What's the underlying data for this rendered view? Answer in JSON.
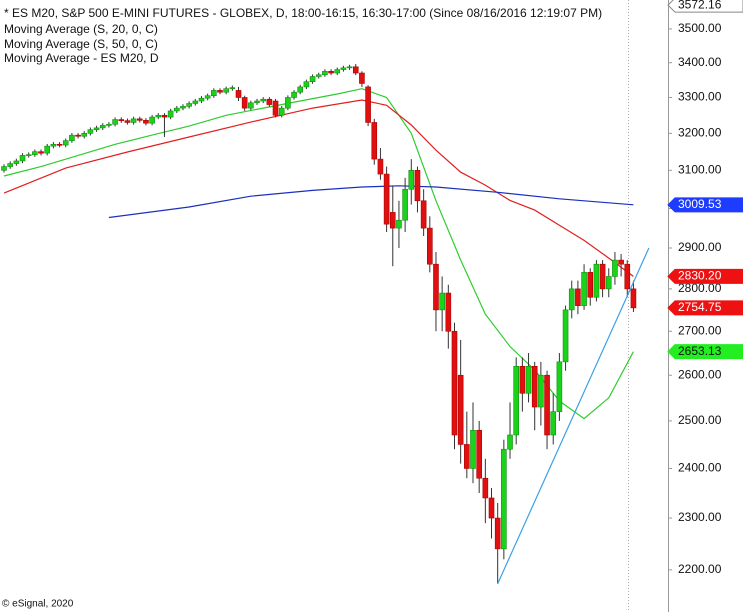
{
  "chart_data": {
    "type": "candlestick",
    "title": "* ES M20, S&P 500 E-MINI FUTURES - GLOBEX, D, 18:00-16:15, 16:30-17:00 (Since 08/16/2016 12:19:07 PM)",
    "log_scale": true,
    "xlim": [
      -0.65,
      107.6
    ],
    "ylim": [
      2153,
      3588
    ],
    "yticks": [
      {
        "value": 2200,
        "label": "2200.00"
      },
      {
        "value": 2300,
        "label": "2300.00"
      },
      {
        "value": 2400,
        "label": "2400.00"
      },
      {
        "value": 2500,
        "label": "2500.00"
      },
      {
        "value": 2600,
        "label": "2600.00"
      },
      {
        "value": 2700,
        "label": "2700.00"
      },
      {
        "value": 2800,
        "label": "2800.00"
      },
      {
        "value": 2900,
        "label": "2900.00"
      },
      {
        "value": 3000,
        "label": "3000.00"
      },
      {
        "value": 3100,
        "label": "3100.00"
      },
      {
        "value": 3200,
        "label": "3200.00"
      },
      {
        "value": 3300,
        "label": "3300.00"
      },
      {
        "value": 3400,
        "label": "3400.00"
      },
      {
        "value": 3500,
        "label": "3500.00"
      }
    ],
    "up_color": "#19d219",
    "down_color": "#e01010",
    "open": [
      3100,
      3110,
      3118,
      3125,
      3140,
      3142,
      3150,
      3146,
      3165,
      3170,
      3168,
      3180,
      3195,
      3192,
      3200,
      3210,
      3215,
      3222,
      3225,
      3238,
      3235,
      3230,
      3240,
      3236,
      3228,
      3245,
      3250,
      3245,
      3262,
      3270,
      3275,
      3283,
      3290,
      3298,
      3305,
      3320,
      3315,
      3325,
      3320,
      3300,
      3270,
      3285,
      3290,
      3295,
      3290,
      3250,
      3270,
      3300,
      3315,
      3330,
      3345,
      3360,
      3365,
      3375,
      3370,
      3380,
      3385,
      3388,
      3370,
      3330,
      3230,
      3130,
      3090,
      2990,
      2950,
      2970,
      3050,
      3100,
      3020,
      2950,
      2860,
      2750,
      2790,
      2700,
      2600,
      2450,
      2400,
      2480,
      2380,
      2340,
      2300,
      2240,
      2440,
      2470,
      2620,
      2560,
      2620,
      2530,
      2600,
      2470,
      2520,
      2630,
      2750,
      2800,
      2760,
      2840,
      2780,
      2860,
      2800,
      2830,
      2870,
      2860,
      2800
    ],
    "high": [
      3116,
      3124,
      3131,
      3146,
      3148,
      3156,
      3156,
      3171,
      3176,
      3176,
      3186,
      3201,
      3201,
      3206,
      3216,
      3221,
      3228,
      3231,
      3244,
      3244,
      3241,
      3246,
      3246,
      3242,
      3251,
      3256,
      3256,
      3268,
      3276,
      3281,
      3289,
      3296,
      3304,
      3311,
      3326,
      3326,
      3331,
      3334,
      3330,
      3305,
      3291,
      3296,
      3301,
      3301,
      3296,
      3276,
      3306,
      3321,
      3336,
      3351,
      3366,
      3371,
      3381,
      3381,
      3386,
      3391,
      3394,
      3396,
      3375,
      3335,
      3240,
      3160,
      3110,
      3060,
      3020,
      3080,
      3130,
      3110,
      3050,
      2980,
      2890,
      2830,
      2810,
      2720,
      2680,
      2520,
      2540,
      2500,
      2420,
      2360,
      2330,
      2460,
      2540,
      2640,
      2640,
      2650,
      2630,
      2630,
      2610,
      2560,
      2650,
      2760,
      2820,
      2820,
      2860,
      2850,
      2870,
      2870,
      2850,
      2890,
      2885,
      2870,
      2820
    ],
    "low": [
      3094,
      3104,
      3112,
      3119,
      3134,
      3136,
      3140,
      3140,
      3159,
      3162,
      3162,
      3174,
      3186,
      3186,
      3194,
      3204,
      3209,
      3216,
      3219,
      3229,
      3224,
      3224,
      3230,
      3222,
      3222,
      3239,
      3190,
      3239,
      3256,
      3264,
      3269,
      3277,
      3284,
      3292,
      3299,
      3309,
      3309,
      3319,
      3290,
      3262,
      3264,
      3279,
      3284,
      3274,
      3244,
      3244,
      3264,
      3294,
      3309,
      3324,
      3339,
      3354,
      3359,
      3364,
      3364,
      3374,
      3379,
      3364,
      3330,
      3220,
      3115,
      3075,
      2940,
      2855,
      2900,
      2940,
      3010,
      2990,
      2930,
      2840,
      2700,
      2700,
      2660,
      2440,
      2410,
      2380,
      2370,
      2350,
      2290,
      2260,
      2174,
      2220,
      2420,
      2450,
      2520,
      2540,
      2480,
      2490,
      2440,
      2450,
      2500,
      2610,
      2730,
      2740,
      2750,
      2760,
      2770,
      2780,
      2780,
      2810,
      2830,
      2780,
      2745
    ],
    "close": [
      3110,
      3118,
      3125,
      3140,
      3142,
      3150,
      3146,
      3165,
      3170,
      3168,
      3180,
      3195,
      3192,
      3200,
      3210,
      3215,
      3222,
      3225,
      3238,
      3235,
      3230,
      3240,
      3236,
      3228,
      3245,
      3250,
      3245,
      3262,
      3270,
      3275,
      3283,
      3290,
      3298,
      3305,
      3320,
      3315,
      3325,
      3328,
      3300,
      3270,
      3285,
      3290,
      3295,
      3280,
      3250,
      3270,
      3300,
      3315,
      3330,
      3345,
      3360,
      3365,
      3375,
      3370,
      3380,
      3385,
      3388,
      3370,
      3340,
      3230,
      3130,
      3090,
      2960,
      2950,
      2970,
      3050,
      3100,
      3020,
      2950,
      2860,
      2750,
      2790,
      2700,
      2470,
      2450,
      2400,
      2480,
      2380,
      2340,
      2300,
      2240,
      2440,
      2470,
      2620,
      2560,
      2620,
      2530,
      2600,
      2470,
      2520,
      2630,
      2750,
      2800,
      2760,
      2840,
      2780,
      2860,
      2800,
      2830,
      2870,
      2860,
      2800,
      2754.75
    ],
    "series": [
      {
        "name": "Moving Average (S, 20, 0, C)",
        "color": "#2ecc2e",
        "x": [
          0,
          6,
          12,
          18,
          24,
          30,
          36,
          42,
          48,
          54,
          58,
          62,
          66,
          70,
          74,
          78,
          82,
          86,
          90,
          94,
          98,
          102
        ],
        "values": [
          3085,
          3110,
          3140,
          3170,
          3195,
          3220,
          3250,
          3270,
          3290,
          3310,
          3325,
          3300,
          3200,
          3020,
          2870,
          2740,
          2665,
          2612,
          2543,
          2505,
          2550,
          2653.13
        ]
      },
      {
        "name": "Moving Average (S, 50, 0, C)",
        "color": "#e02020",
        "x": [
          0,
          10,
          20,
          30,
          40,
          50,
          58,
          62,
          66,
          70,
          74,
          78,
          82,
          86,
          90,
          94,
          98,
          102
        ],
        "values": [
          3040,
          3106,
          3149,
          3190,
          3231,
          3270,
          3293,
          3278,
          3223,
          3154,
          3095,
          3061,
          3021,
          2996,
          2957,
          2919,
          2875,
          2830.2
        ]
      },
      {
        "name": "Moving Average - ES M20, D",
        "color": "#1a2fbf",
        "x": [
          17,
          30,
          40,
          50,
          58,
          64,
          70,
          80,
          90,
          102
        ],
        "values": [
          2977,
          3004,
          3032,
          3047,
          3056,
          3059,
          3056,
          3042,
          3025,
          3009.53
        ]
      }
    ],
    "trendline": {
      "color": "#3aa0e8",
      "x": [
        80,
        104.5
      ],
      "y": [
        2174,
        2900
      ]
    },
    "price_markers": [
      {
        "value": 3572.16,
        "label": "3572.16",
        "color": "#ffffff"
      },
      {
        "value": 3009.53,
        "label": "3009.53",
        "color": "#1e3cff"
      },
      {
        "value": 2830.2,
        "label": "2830.20",
        "color": "#ee1111"
      },
      {
        "value": 2754.75,
        "label": "2754.75",
        "color": "#ee1111"
      },
      {
        "value": 2653.13,
        "label": "2653.13",
        "color": "#22ee22"
      }
    ],
    "footer": "© eSignal, 2020"
  }
}
